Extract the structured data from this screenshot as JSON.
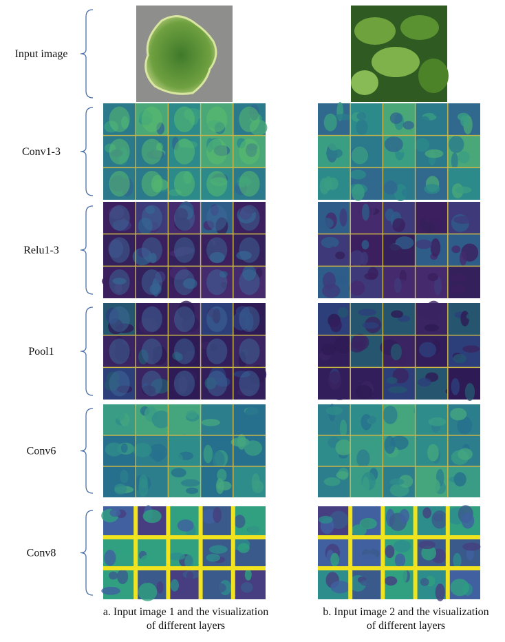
{
  "labels": [
    "Input image",
    "Conv1-3",
    "Relu1-3",
    "Pool1",
    "Conv6",
    "Conv8"
  ],
  "captions": {
    "a": [
      "a. Input image 1 and the visualization",
      "of different layers"
    ],
    "b": [
      "b. Input image 2 and the visualization",
      "of different layers"
    ]
  }
}
